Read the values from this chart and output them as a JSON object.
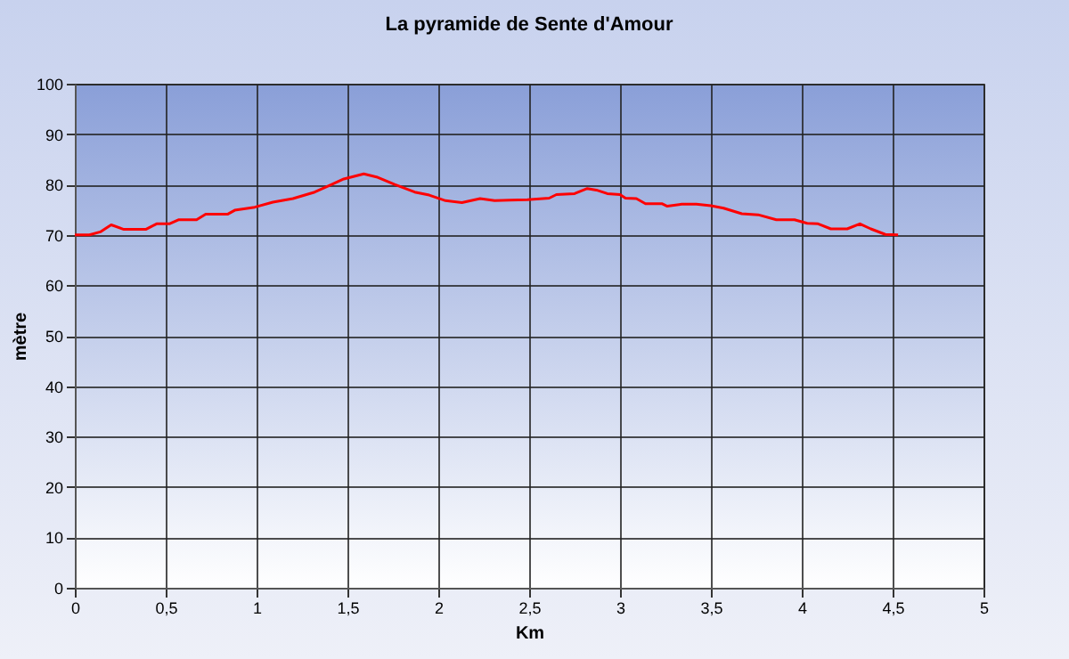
{
  "chart_data": {
    "type": "line",
    "title": "La pyramide de Sente d'Amour",
    "xlabel": "Km",
    "ylabel": "mètre",
    "x": [
      0,
      0.08,
      0.14,
      0.2,
      0.27,
      0.39,
      0.45,
      0.52,
      0.57,
      0.67,
      0.72,
      0.84,
      0.88,
      0.99,
      1.09,
      1.2,
      1.32,
      1.4,
      1.48,
      1.59,
      1.66,
      1.76,
      1.87,
      1.95,
      2.04,
      2.13,
      2.23,
      2.31,
      2.39,
      2.49,
      2.61,
      2.65,
      2.75,
      2.82,
      2.87,
      2.93,
      3.0,
      3.03,
      3.09,
      3.14,
      3.23,
      3.26,
      3.34,
      3.42,
      3.5,
      3.57,
      3.67,
      3.76,
      3.86,
      3.96,
      4.03,
      4.09,
      4.16,
      4.25,
      4.32,
      4.38,
      4.46,
      4.53
    ],
    "series": [
      {
        "color": "#ff0000",
        "values": [
          70,
          70,
          70.6,
          72,
          71.1,
          71.1,
          72.2,
          72.2,
          73,
          73,
          74.1,
          74.1,
          74.9,
          75.5,
          76.5,
          77.2,
          78.5,
          79.8,
          81.1,
          82.1,
          81.5,
          80,
          78.5,
          77.9,
          76.8,
          76.4,
          77.2,
          76.8,
          76.9,
          77,
          77.3,
          78,
          78.2,
          79.2,
          78.9,
          78.2,
          78,
          77.3,
          77.2,
          76.2,
          76.2,
          75.7,
          76.1,
          76.1,
          75.8,
          75.3,
          74.2,
          74,
          73,
          73,
          72.3,
          72.2,
          71.2,
          71.2,
          72.2,
          71.2,
          70.1,
          70
        ]
      }
    ],
    "xlim": [
      0,
      5
    ],
    "xticks": [
      0,
      {
        "value": 0.5,
        "label": "0,5"
      },
      1,
      {
        "value": 1.5,
        "label": "1,5"
      },
      2,
      {
        "value": 2.5,
        "label": "2,5"
      },
      3,
      {
        "value": 3.5,
        "label": "3,5"
      },
      4,
      {
        "value": 4.5,
        "label": "4,5"
      },
      5
    ],
    "ylim": [
      0,
      100
    ],
    "yticks": [
      0,
      10,
      20,
      30,
      40,
      50,
      60,
      70,
      80,
      90,
      100
    ],
    "grid": true,
    "marker": "none",
    "line_style": "solid"
  }
}
